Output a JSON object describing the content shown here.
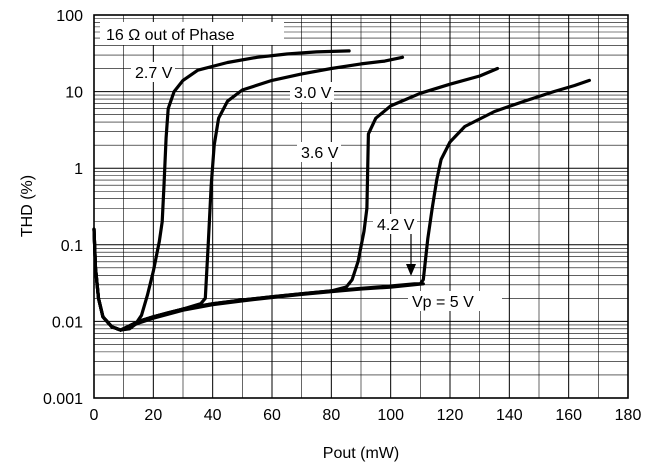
{
  "chart_data": {
    "type": "line",
    "xlabel": "Pout (mW)",
    "ylabel": "THD (%)",
    "xlim": [
      0,
      180
    ],
    "ylim": [
      0.001,
      100
    ],
    "yscale": "log",
    "grid": true,
    "x_ticks": [
      "0",
      "20",
      "40",
      "60",
      "80",
      "100",
      "120",
      "140",
      "160",
      "180"
    ],
    "y_ticks": [
      "0.001",
      "0.01",
      "0.1",
      "1",
      "10",
      "100"
    ],
    "annotations": [
      {
        "text": "16 Ω out of Phase"
      }
    ],
    "series": [
      {
        "name": "2.7 V",
        "points": [
          [
            0,
            0.16
          ],
          [
            0.5,
            0.05
          ],
          [
            1.5,
            0.02
          ],
          [
            3,
            0.0115
          ],
          [
            6,
            0.0085
          ],
          [
            9,
            0.0077
          ],
          [
            12,
            0.008
          ],
          [
            14,
            0.0092
          ],
          [
            16,
            0.012
          ],
          [
            18,
            0.022
          ],
          [
            20,
            0.045
          ],
          [
            22,
            0.11
          ],
          [
            23,
            0.2
          ],
          [
            23.6,
            0.6
          ],
          [
            24.3,
            2.5
          ],
          [
            25,
            6
          ],
          [
            27,
            10
          ],
          [
            30,
            14
          ],
          [
            35,
            19
          ],
          [
            45,
            24
          ],
          [
            55,
            28
          ],
          [
            65,
            31
          ],
          [
            75,
            33
          ],
          [
            86,
            34
          ]
        ]
      },
      {
        "name": "3.0 V",
        "points": [
          [
            0,
            0.16
          ],
          [
            0.5,
            0.05
          ],
          [
            1.5,
            0.02
          ],
          [
            3,
            0.0115
          ],
          [
            6,
            0.0085
          ],
          [
            9,
            0.0077
          ],
          [
            15,
            0.01
          ],
          [
            20,
            0.0115
          ],
          [
            25,
            0.013
          ],
          [
            30,
            0.0145
          ],
          [
            36,
            0.017
          ],
          [
            37.5,
            0.02
          ],
          [
            38.5,
            0.1
          ],
          [
            39.5,
            0.6
          ],
          [
            40.5,
            2
          ],
          [
            42,
            4.5
          ],
          [
            45,
            7.5
          ],
          [
            50,
            10.5
          ],
          [
            60,
            14
          ],
          [
            70,
            17
          ],
          [
            80,
            20
          ],
          [
            90,
            23
          ],
          [
            98,
            25
          ],
          [
            104,
            28
          ]
        ]
      },
      {
        "name": "3.6 V",
        "points": [
          [
            0,
            0.16
          ],
          [
            0.5,
            0.05
          ],
          [
            1.5,
            0.02
          ],
          [
            3,
            0.0115
          ],
          [
            6,
            0.0085
          ],
          [
            9,
            0.0077
          ],
          [
            15,
            0.01
          ],
          [
            20,
            0.0115
          ],
          [
            30,
            0.0145
          ],
          [
            40,
            0.017
          ],
          [
            50,
            0.019
          ],
          [
            60,
            0.021
          ],
          [
            70,
            0.023
          ],
          [
            80,
            0.025
          ],
          [
            85,
            0.028
          ],
          [
            87,
            0.035
          ],
          [
            89,
            0.06
          ],
          [
            91,
            0.15
          ],
          [
            92,
            0.3
          ],
          [
            92.5,
            2.8
          ],
          [
            95,
            4.5
          ],
          [
            100,
            6.5
          ],
          [
            110,
            9.5
          ],
          [
            120,
            12.5
          ],
          [
            130,
            16
          ],
          [
            136,
            20
          ]
        ]
      },
      {
        "name": "4.2 V",
        "points": [
          [
            0,
            0.16
          ],
          [
            0.5,
            0.05
          ],
          [
            1.5,
            0.02
          ],
          [
            3,
            0.0115
          ],
          [
            6,
            0.0085
          ],
          [
            9,
            0.0077
          ],
          [
            15,
            0.01
          ],
          [
            20,
            0.0115
          ],
          [
            30,
            0.0145
          ],
          [
            40,
            0.017
          ],
          [
            50,
            0.019
          ],
          [
            60,
            0.021
          ],
          [
            70,
            0.023
          ],
          [
            80,
            0.025
          ],
          [
            90,
            0.027
          ],
          [
            100,
            0.029
          ],
          [
            108,
            0.031
          ],
          [
            110,
            0.031
          ],
          [
            111,
            0.035
          ],
          [
            112.5,
            0.12
          ],
          [
            114,
            0.3
          ],
          [
            115.5,
            0.7
          ],
          [
            117,
            1.3
          ],
          [
            120,
            2.2
          ],
          [
            125,
            3.5
          ],
          [
            135,
            5.5
          ],
          [
            145,
            7.5
          ],
          [
            155,
            10
          ],
          [
            162,
            12
          ],
          [
            167,
            14
          ]
        ]
      },
      {
        "name": "Vp = 5 V",
        "points": [
          [
            3,
            0.0115
          ],
          [
            6,
            0.0085
          ],
          [
            9,
            0.0077
          ],
          [
            15,
            0.0095
          ],
          [
            20,
            0.011
          ],
          [
            30,
            0.014
          ],
          [
            40,
            0.0165
          ],
          [
            50,
            0.0185
          ],
          [
            60,
            0.0205
          ],
          [
            70,
            0.0225
          ],
          [
            80,
            0.0245
          ],
          [
            90,
            0.0265
          ],
          [
            100,
            0.028
          ],
          [
            111,
            0.031
          ]
        ]
      }
    ]
  }
}
